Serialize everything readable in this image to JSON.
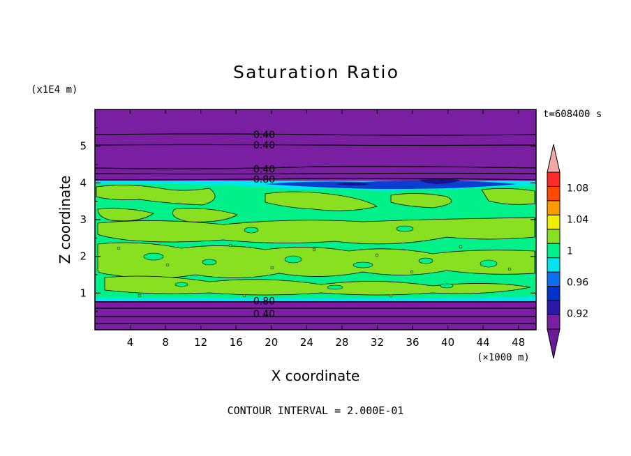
{
  "chart_data": {
    "type": "heatmap",
    "title": "Saturation Ratio",
    "xlabel": "X coordinate",
    "ylabel": "Z coordinate",
    "x_unit": "(×1000 m)",
    "y_unit": "(x1E4 m)",
    "time_label": "t=608400 s",
    "footer": "CONTOUR INTERVAL = 2.000E-01",
    "xlim": [
      0,
      50
    ],
    "ylim": [
      0,
      6
    ],
    "x_ticks": [
      4,
      8,
      12,
      16,
      20,
      24,
      28,
      32,
      36,
      40,
      44,
      48
    ],
    "y_ticks": [
      1,
      2,
      3,
      4,
      5
    ],
    "contour_labels": [
      {
        "text": "0.40",
        "x": 17,
        "z": 5.32
      },
      {
        "text": "0.40",
        "x": 17,
        "z": 5.03
      },
      {
        "text": "0.40",
        "x": 17,
        "z": 4.38
      },
      {
        "text": "0.80",
        "x": 17,
        "z": 4.1
      },
      {
        "text": "0.80",
        "x": 17,
        "z": 0.79
      },
      {
        "text": "0.40",
        "x": 17,
        "z": 0.44
      }
    ],
    "colorbar": {
      "levels": [
        0.9,
        0.92,
        0.94,
        0.96,
        0.98,
        1.0,
        1.02,
        1.04,
        1.06,
        1.08,
        1.1
      ],
      "colors": [
        "#7b1fa2",
        "#2d17a8",
        "#0033cc",
        "#0a6ff0",
        "#00e5f0",
        "#00f08a",
        "#88e020",
        "#f0f000",
        "#ff9a00",
        "#ff4a00",
        "#ff2a2a"
      ],
      "over_color": "#f2a8a8",
      "under_color": "#6a1a9a",
      "labels": [
        "1.08",
        "1.04",
        "1",
        "0.96",
        "0.92"
      ]
    },
    "colors": {
      "purple": "#7b1fa2",
      "green": "#88e020",
      "teal": "#00f08a",
      "cyan": "#00e5f0",
      "blue": "#0a3fd0",
      "navy": "#1a1090"
    }
  }
}
